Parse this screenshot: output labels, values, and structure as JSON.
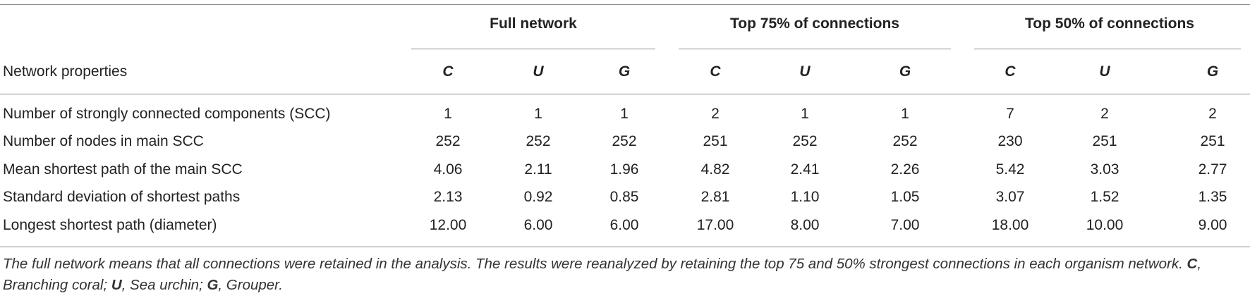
{
  "table": {
    "groups": [
      "Full network",
      "Top 75% of connections",
      "Top 50% of connections"
    ],
    "row_header": "Network properties",
    "subheaders": [
      "C",
      "U",
      "G",
      "C",
      "U",
      "G",
      "C",
      "U",
      "G"
    ],
    "rows": [
      [
        "Number of strongly connected components (SCC)",
        "1",
        "1",
        "1",
        "2",
        "1",
        "1",
        "7",
        "2",
        "2"
      ],
      [
        "Number of nodes in main SCC",
        "252",
        "252",
        "252",
        "251",
        "252",
        "252",
        "230",
        "251",
        "251"
      ],
      [
        "Mean shortest path of the main SCC",
        "4.06",
        "2.11",
        "1.96",
        "4.82",
        "2.41",
        "2.26",
        "5.42",
        "3.03",
        "2.77"
      ],
      [
        "Standard deviation of shortest paths",
        "2.13",
        "0.92",
        "0.85",
        "2.81",
        "1.10",
        "1.05",
        "3.07",
        "1.52",
        "1.35"
      ],
      [
        "Longest shortest path (diameter)",
        "12.00",
        "6.00",
        "6.00",
        "17.00",
        "8.00",
        "7.00",
        "18.00",
        "10.00",
        "9.00"
      ]
    ]
  },
  "footnote": {
    "text": "The full network means that all connections were retained in the analysis. The results were reanalyzed by retaining the top 75 and 50% strongest connections in each organism network.",
    "legend": [
      {
        "symbol": "C",
        "text": ", Branching coral;"
      },
      {
        "symbol": "U",
        "text": ", Sea urchin;"
      },
      {
        "symbol": "G",
        "text": ", Grouper."
      }
    ]
  }
}
